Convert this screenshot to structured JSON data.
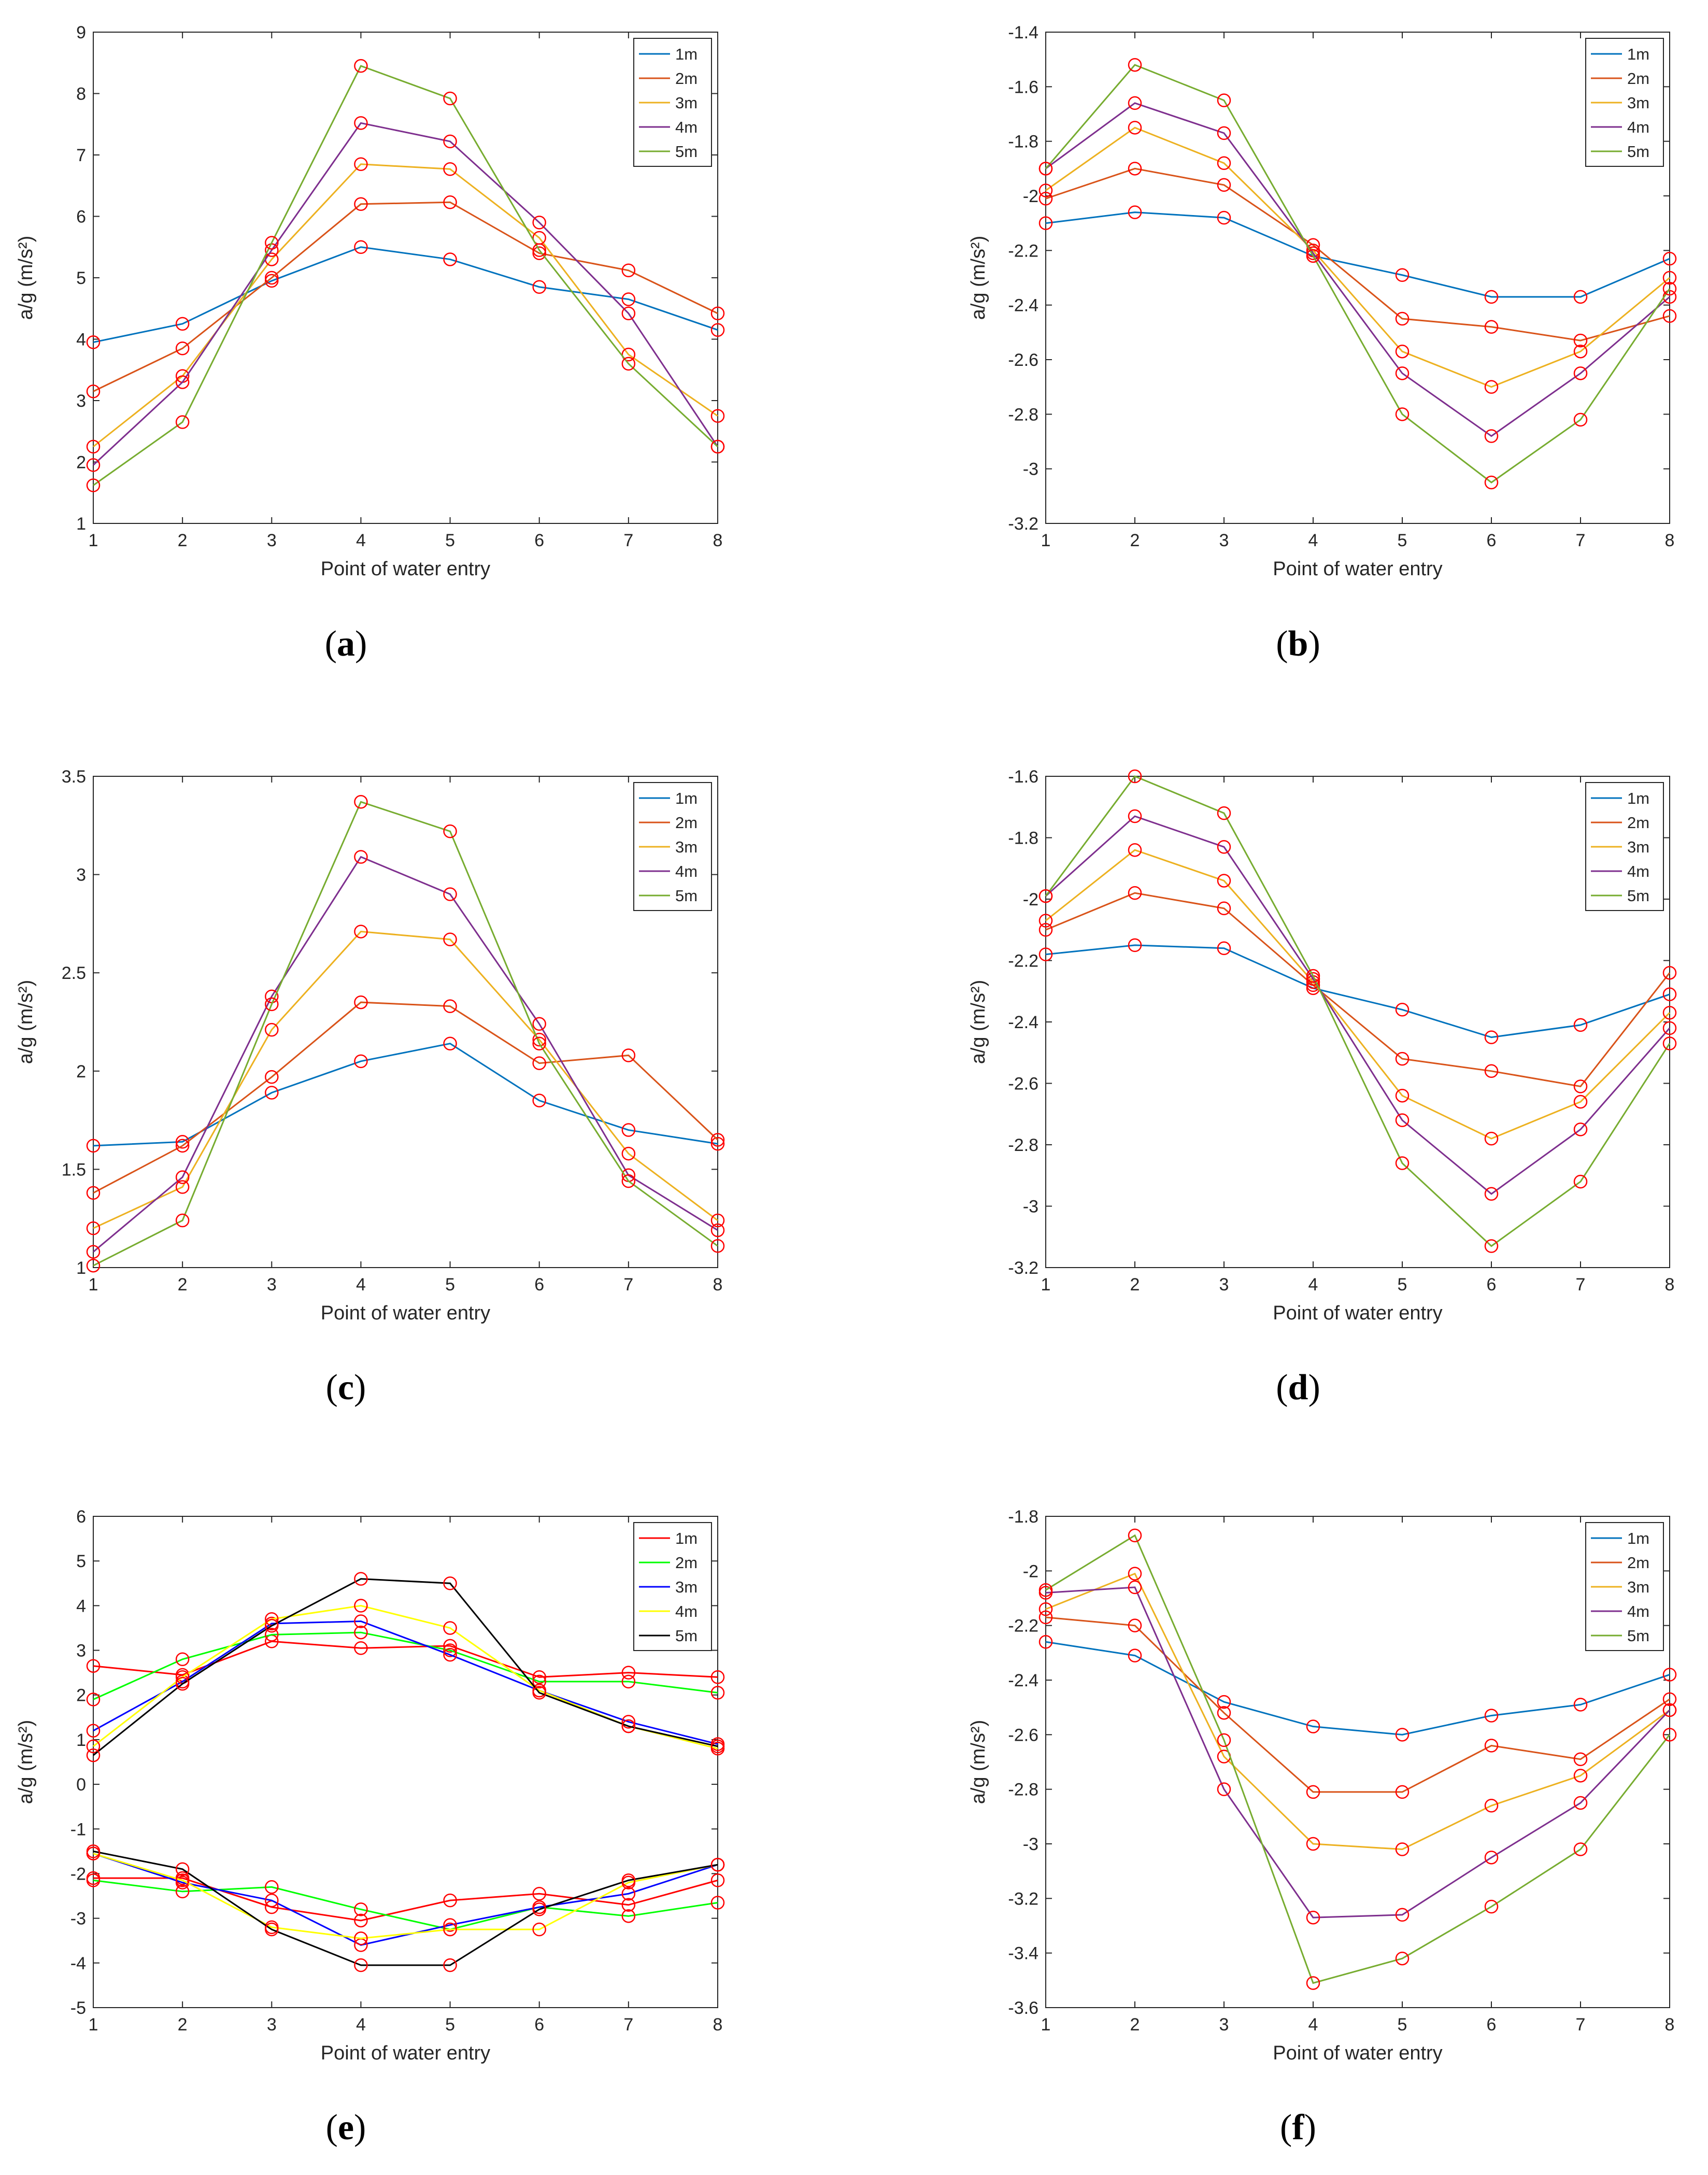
{
  "figure": {
    "marker_color": "#ff0000"
  },
  "chart_data": [
    {
      "id": "a",
      "caption": "a",
      "type": "line",
      "xlabel": "Point of water entry",
      "ylabel": "a/g (m/s²)",
      "x": [
        1,
        2,
        3,
        4,
        5,
        6,
        7,
        8
      ],
      "xlim": [
        1,
        8
      ],
      "ylim": [
        1,
        9
      ],
      "yticks": [
        1,
        2,
        3,
        4,
        5,
        6,
        7,
        8,
        9
      ],
      "legend_position": "top-right",
      "series": [
        {
          "name": "1m",
          "color": "#0072bd",
          "values": [
            3.95,
            4.25,
            4.95,
            5.5,
            5.3,
            4.85,
            4.65,
            4.15
          ]
        },
        {
          "name": "2m",
          "color": "#d95319",
          "values": [
            3.15,
            3.85,
            5.0,
            6.2,
            6.23,
            5.4,
            5.12,
            4.42
          ]
        },
        {
          "name": "3m",
          "color": "#edb120",
          "values": [
            2.25,
            3.4,
            5.3,
            6.85,
            6.77,
            5.65,
            3.75,
            2.75
          ]
        },
        {
          "name": "4m",
          "color": "#7e2f8e",
          "values": [
            1.95,
            3.3,
            5.45,
            7.52,
            7.22,
            5.9,
            4.42,
            2.25
          ]
        },
        {
          "name": "5m",
          "color": "#77ac30",
          "values": [
            1.62,
            2.65,
            5.57,
            8.45,
            7.92,
            5.45,
            3.6,
            2.25
          ]
        }
      ]
    },
    {
      "id": "b",
      "caption": "b",
      "type": "line",
      "xlabel": "Point of water entry",
      "ylabel": "a/g (m/s²)",
      "x": [
        1,
        2,
        3,
        4,
        5,
        6,
        7,
        8
      ],
      "xlim": [
        1,
        8
      ],
      "ylim": [
        -3.2,
        -1.4
      ],
      "yticks": [
        -3.2,
        -3,
        -2.8,
        -2.6,
        -2.4,
        -2.2,
        -2,
        -1.8,
        -1.6,
        -1.4
      ],
      "legend_position": "top-right",
      "series": [
        {
          "name": "1m",
          "color": "#0072bd",
          "values": [
            -2.1,
            -2.06,
            -2.08,
            -2.22,
            -2.29,
            -2.37,
            -2.37,
            -2.23
          ]
        },
        {
          "name": "2m",
          "color": "#d95319",
          "values": [
            -2.01,
            -1.9,
            -1.96,
            -2.18,
            -2.45,
            -2.48,
            -2.53,
            -2.44
          ]
        },
        {
          "name": "3m",
          "color": "#edb120",
          "values": [
            -1.98,
            -1.75,
            -1.88,
            -2.2,
            -2.57,
            -2.7,
            -2.57,
            -2.3
          ]
        },
        {
          "name": "4m",
          "color": "#7e2f8e",
          "values": [
            -1.9,
            -1.66,
            -1.77,
            -2.21,
            -2.65,
            -2.88,
            -2.65,
            -2.37
          ]
        },
        {
          "name": "5m",
          "color": "#77ac30",
          "values": [
            -1.9,
            -1.52,
            -1.65,
            -2.22,
            -2.8,
            -3.05,
            -2.82,
            -2.34
          ]
        }
      ]
    },
    {
      "id": "c",
      "caption": "c",
      "type": "line",
      "xlabel": "Point of water entry",
      "ylabel": "a/g (m/s²)",
      "x": [
        1,
        2,
        3,
        4,
        5,
        6,
        7,
        8
      ],
      "xlim": [
        1,
        8
      ],
      "ylim": [
        1,
        3.5
      ],
      "yticks": [
        1,
        1.5,
        2,
        2.5,
        3,
        3.5
      ],
      "legend_position": "top-right",
      "series": [
        {
          "name": "1m",
          "color": "#0072bd",
          "values": [
            1.62,
            1.64,
            1.89,
            2.05,
            2.14,
            1.85,
            1.7,
            1.63
          ]
        },
        {
          "name": "2m",
          "color": "#d95319",
          "values": [
            1.38,
            1.62,
            1.97,
            2.35,
            2.33,
            2.04,
            2.08,
            1.65
          ]
        },
        {
          "name": "3m",
          "color": "#edb120",
          "values": [
            1.2,
            1.41,
            2.21,
            2.71,
            2.67,
            2.16,
            1.58,
            1.24
          ]
        },
        {
          "name": "4m",
          "color": "#7e2f8e",
          "values": [
            1.08,
            1.46,
            2.38,
            3.09,
            2.9,
            2.24,
            1.47,
            1.19
          ]
        },
        {
          "name": "5m",
          "color": "#77ac30",
          "values": [
            1.01,
            1.24,
            2.34,
            3.37,
            3.22,
            2.14,
            1.44,
            1.11
          ]
        }
      ]
    },
    {
      "id": "d",
      "caption": "d",
      "type": "line",
      "xlabel": "Point of water entry",
      "ylabel": "a/g (m/s²)",
      "x": [
        1,
        2,
        3,
        4,
        5,
        6,
        7,
        8
      ],
      "xlim": [
        1,
        8
      ],
      "ylim": [
        -3.2,
        -1.6
      ],
      "yticks": [
        -3.2,
        -3,
        -2.8,
        -2.6,
        -2.4,
        -2.2,
        -2,
        -1.8,
        -1.6
      ],
      "legend_position": "top-right",
      "series": [
        {
          "name": "1m",
          "color": "#0072bd",
          "values": [
            -2.18,
            -2.15,
            -2.16,
            -2.29,
            -2.36,
            -2.45,
            -2.41,
            -2.31
          ]
        },
        {
          "name": "2m",
          "color": "#d95319",
          "values": [
            -2.1,
            -1.98,
            -2.03,
            -2.28,
            -2.52,
            -2.56,
            -2.61,
            -2.24
          ]
        },
        {
          "name": "3m",
          "color": "#edb120",
          "values": [
            -2.07,
            -1.84,
            -1.94,
            -2.27,
            -2.64,
            -2.78,
            -2.66,
            -2.37
          ]
        },
        {
          "name": "4m",
          "color": "#7e2f8e",
          "values": [
            -1.99,
            -1.73,
            -1.83,
            -2.26,
            -2.72,
            -2.96,
            -2.75,
            -2.42
          ]
        },
        {
          "name": "5m",
          "color": "#77ac30",
          "values": [
            -1.99,
            -1.6,
            -1.72,
            -2.25,
            -2.86,
            -3.13,
            -2.92,
            -2.47
          ]
        }
      ]
    },
    {
      "id": "e",
      "caption": "e",
      "type": "line",
      "xlabel": "Point of water entry",
      "ylabel": "a/g (m/s²)",
      "x": [
        1,
        2,
        3,
        4,
        5,
        6,
        7,
        8
      ],
      "xlim": [
        1,
        8
      ],
      "ylim": [
        -5,
        6
      ],
      "yticks": [
        -5,
        -4,
        -3,
        -2,
        -1,
        0,
        1,
        2,
        3,
        4,
        5,
        6
      ],
      "legend_position": "top-right",
      "series": [
        {
          "name": "1m",
          "color": "#ff0000",
          "values": [
            2.65,
            2.45,
            3.2,
            3.05,
            3.1,
            2.4,
            2.5,
            2.4
          ]
        },
        {
          "name": "2m",
          "color": "#00ff00",
          "values": [
            1.9,
            2.8,
            3.35,
            3.4,
            3.0,
            2.3,
            2.3,
            2.05
          ]
        },
        {
          "name": "3m",
          "color": "#0000ff",
          "values": [
            1.2,
            2.3,
            3.6,
            3.65,
            2.9,
            2.1,
            1.4,
            0.9
          ]
        },
        {
          "name": "4m",
          "color": "#ffff00",
          "values": [
            0.85,
            2.4,
            3.7,
            4.0,
            3.5,
            2.1,
            1.3,
            0.8
          ]
        },
        {
          "name": "5m",
          "color": "#000000",
          "values": [
            0.65,
            2.25,
            3.55,
            4.6,
            4.5,
            2.05,
            1.3,
            0.85
          ]
        }
      ],
      "lower_series": [
        {
          "name": "1m",
          "color": "#ff0000",
          "values": [
            -2.1,
            -2.1,
            -2.75,
            -3.05,
            -2.6,
            -2.45,
            -2.7,
            -2.15
          ]
        },
        {
          "name": "2m",
          "color": "#00ff00",
          "values": [
            -2.15,
            -2.4,
            -2.3,
            -2.8,
            -3.25,
            -2.75,
            -2.95,
            -2.65
          ]
        },
        {
          "name": "3m",
          "color": "#0000ff",
          "values": [
            -1.55,
            -2.2,
            -2.6,
            -3.6,
            -3.15,
            -2.75,
            -2.45,
            -1.8
          ]
        },
        {
          "name": "4m",
          "color": "#ffff00",
          "values": [
            -1.55,
            -2.15,
            -3.2,
            -3.45,
            -3.25,
            -3.25,
            -2.2,
            -1.8
          ]
        },
        {
          "name": "5m",
          "color": "#000000",
          "values": [
            -1.5,
            -1.9,
            -3.25,
            -4.05,
            -4.05,
            -2.8,
            -2.15,
            -1.8
          ]
        }
      ]
    },
    {
      "id": "f",
      "caption": "f",
      "type": "line",
      "xlabel": "Point of water entry",
      "ylabel": "a/g (m/s²)",
      "x": [
        1,
        2,
        3,
        4,
        5,
        6,
        7,
        8
      ],
      "xlim": [
        1,
        8
      ],
      "ylim": [
        -3.6,
        -1.8
      ],
      "yticks": [
        -3.6,
        -3.4,
        -3.2,
        -3,
        -2.8,
        -2.6,
        -2.4,
        -2.2,
        -2,
        -1.8
      ],
      "legend_position": "top-right",
      "series": [
        {
          "name": "1m",
          "color": "#0072bd",
          "values": [
            -2.26,
            -2.31,
            -2.48,
            -2.57,
            -2.6,
            -2.53,
            -2.49,
            -2.38
          ]
        },
        {
          "name": "2m",
          "color": "#d95319",
          "values": [
            -2.17,
            -2.2,
            -2.52,
            -2.81,
            -2.81,
            -2.64,
            -2.69,
            -2.47
          ]
        },
        {
          "name": "3m",
          "color": "#edb120",
          "values": [
            -2.14,
            -2.01,
            -2.68,
            -3.0,
            -3.02,
            -2.86,
            -2.75,
            -2.51
          ]
        },
        {
          "name": "4m",
          "color": "#7e2f8e",
          "values": [
            -2.08,
            -2.06,
            -2.8,
            -3.27,
            -3.26,
            -3.05,
            -2.85,
            -2.51
          ]
        },
        {
          "name": "5m",
          "color": "#77ac30",
          "values": [
            -2.07,
            -1.87,
            -2.62,
            -3.51,
            -3.42,
            -3.23,
            -3.02,
            -2.6
          ]
        }
      ]
    }
  ]
}
